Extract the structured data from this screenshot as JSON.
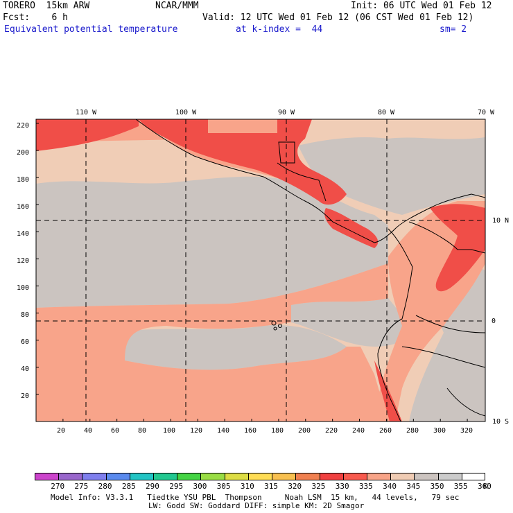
{
  "header": {
    "model": "TORERO  15km ARW",
    "org": "NCAR/MMM",
    "init": "Init: 06 UTC Wed 01 Feb 12",
    "fcst": "Fcst:    6 h",
    "valid": "Valid: 12 UTC Wed 01 Feb 12 (06 CST Wed 01 Feb 12)",
    "field": "Equivalent potential temperature",
    "level": "at k-index =  44",
    "smooth": "sm= 2"
  },
  "map": {
    "lon_labels": [
      "110 W",
      "100 W",
      "90 W",
      "80 W",
      "70 W"
    ],
    "lat_labels": [
      "10 N",
      "0",
      "10 S"
    ],
    "y_ticks": [
      "220",
      "200",
      "180",
      "160",
      "140",
      "120",
      "100",
      "80",
      "60",
      "40",
      "20"
    ],
    "x_ticks": [
      "20",
      "40",
      "60",
      "80",
      "100",
      "120",
      "140",
      "160",
      "180",
      "200",
      "220",
      "240",
      "260",
      "280",
      "300",
      "320"
    ]
  },
  "colorbar": {
    "colors": [
      "#cc44cc",
      "#9966cc",
      "#7f7fee",
      "#5a8aee",
      "#22c4c4",
      "#22c890",
      "#44d444",
      "#99dd44",
      "#dddd44",
      "#ffdd55",
      "#f8c050",
      "#f08050",
      "#f04040",
      "#f85a4e",
      "#f8a488",
      "#f0ccb4",
      "#ccc4c0",
      "#cccccc",
      "#ffffff"
    ],
    "labels": [
      "270",
      "275",
      "280",
      "285",
      "290",
      "295",
      "300",
      "305",
      "310",
      "315",
      "320",
      "325",
      "330",
      "335",
      "340",
      "345",
      "350",
      "355",
      "360"
    ],
    "unit": "K"
  },
  "footer": {
    "line1": "Model Info: V3.3.1   Tiedtke YSU PBL  Thompson     Noah LSM  15 km,   44 levels,   79 sec",
    "line2": "LW: Godd SW: Goddard DIFF: simple KM: 2D Smagor"
  },
  "field_colors": {
    "c335": "#f04e48",
    "c340": "#f8a48a",
    "c345": "#f0cdb6",
    "c350": "#cbc4c0",
    "c355": "#c8c8c8"
  }
}
